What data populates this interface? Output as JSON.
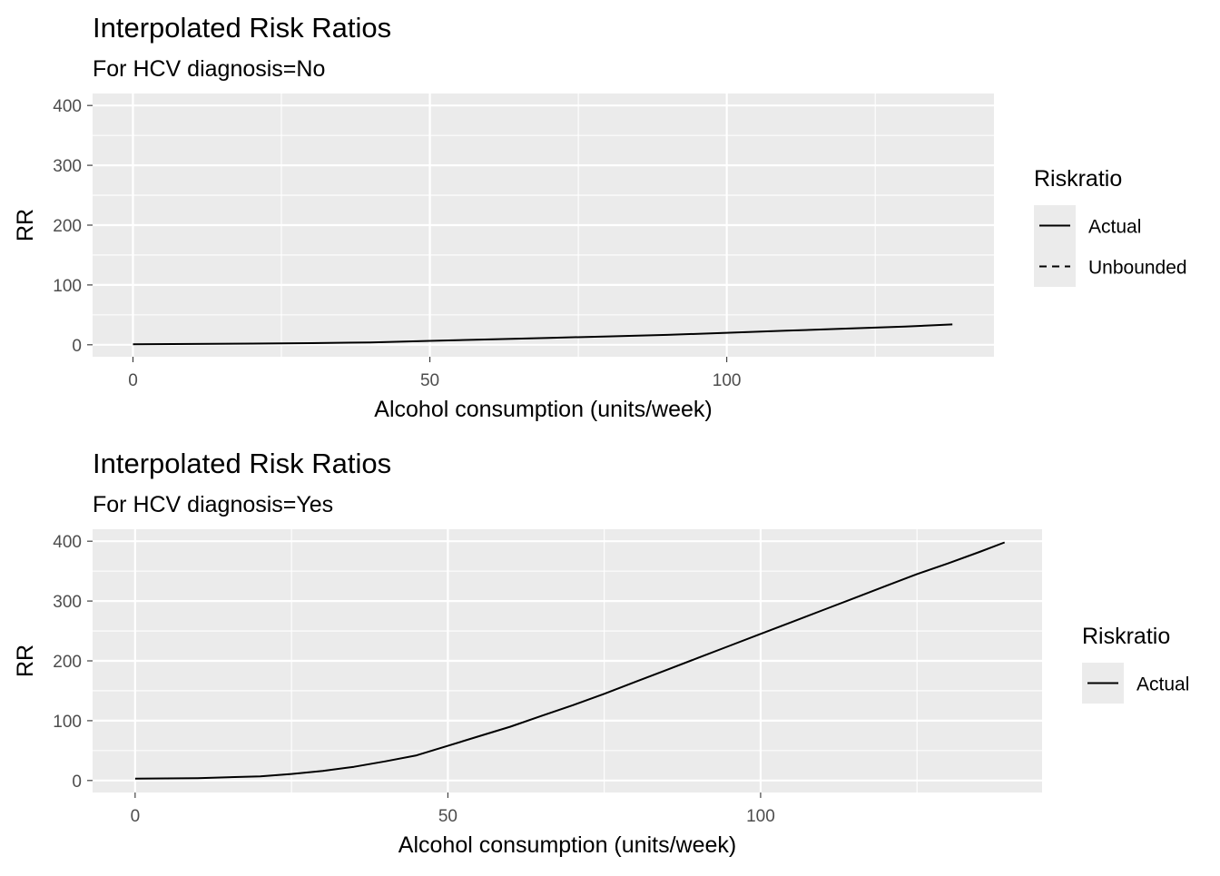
{
  "chart_data": [
    {
      "type": "line",
      "title": "Interpolated Risk Ratios",
      "subtitle": "For  HCV diagnosis=No",
      "xlabel": "Alcohol consumption (units/week)",
      "ylabel": "RR",
      "xlim": [
        -6.8,
        145
      ],
      "ylim": [
        -20,
        420
      ],
      "xticks": [
        0,
        50,
        100
      ],
      "xtick_labels": [
        "0",
        "50",
        "100"
      ],
      "yticks": [
        0,
        100,
        200,
        300,
        400
      ],
      "ytick_labels": [
        "0",
        "100",
        "200",
        "300",
        "400"
      ],
      "grid": true,
      "legend": {
        "title": "Riskratio",
        "position": "right",
        "entries": [
          {
            "label": "Actual",
            "linetype": "solid"
          },
          {
            "label": "Unbounded",
            "linetype": "dashed"
          }
        ]
      },
      "series": [
        {
          "name": "Actual",
          "linetype": "solid",
          "color": "#000000",
          "x": [
            0,
            10,
            20,
            30,
            40,
            50,
            60,
            70,
            80,
            90,
            100,
            110,
            120,
            130,
            138
          ],
          "y": [
            1,
            1.4,
            2,
            2.8,
            4,
            6.5,
            9,
            11.5,
            14,
            16.5,
            20,
            23.5,
            27,
            30.5,
            34
          ]
        }
      ]
    },
    {
      "type": "line",
      "title": "Interpolated Risk Ratios",
      "subtitle": "For  HCV diagnosis=Yes",
      "xlabel": "Alcohol consumption (units/week)",
      "ylabel": "RR",
      "xlim": [
        -6.8,
        145
      ],
      "ylim": [
        -20,
        420
      ],
      "xticks": [
        0,
        50,
        100
      ],
      "xtick_labels": [
        "0",
        "50",
        "100"
      ],
      "yticks": [
        0,
        100,
        200,
        300,
        400
      ],
      "ytick_labels": [
        "0",
        "100",
        "200",
        "300",
        "400"
      ],
      "grid": true,
      "legend": {
        "title": "Riskratio",
        "position": "right",
        "entries": [
          {
            "label": "Actual",
            "linetype": "solid"
          }
        ]
      },
      "series": [
        {
          "name": "Actual",
          "linetype": "solid",
          "color": "#000000",
          "x": [
            0,
            10,
            20,
            25,
            30,
            35,
            40,
            45,
            50,
            55,
            60,
            65,
            70,
            75,
            80,
            85,
            90,
            95,
            100,
            105,
            110,
            115,
            120,
            125,
            130,
            135,
            139
          ],
          "y": [
            3,
            4,
            7,
            11,
            16,
            23,
            32,
            42,
            58,
            74,
            90,
            108,
            126,
            145,
            165,
            185,
            205,
            225,
            245,
            265,
            285,
            305,
            325,
            345,
            363,
            382,
            398
          ]
        }
      ]
    }
  ]
}
